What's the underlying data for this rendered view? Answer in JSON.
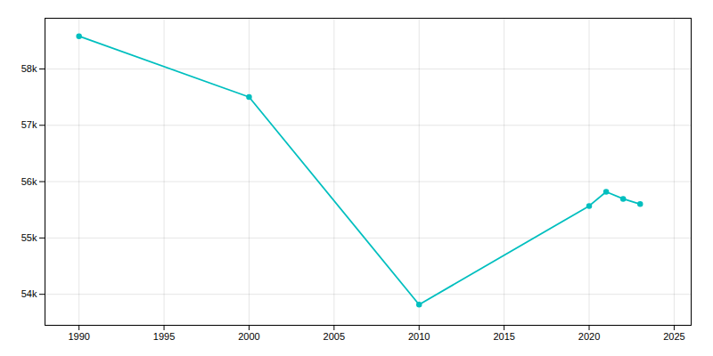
{
  "chart_data": {
    "type": "line",
    "x": [
      1990,
      2000,
      2010,
      2020,
      2021,
      2022,
      2023
    ],
    "values": [
      58582,
      57502,
      53818,
      55568,
      55820,
      55695,
      55601
    ],
    "color": "#00BFBF",
    "marker": "circle",
    "xlim": [
      1988,
      2026
    ],
    "ylim": [
      53450,
      58900
    ],
    "xticks": [
      1990,
      1995,
      2000,
      2005,
      2010,
      2015,
      2020,
      2025
    ],
    "yticks": [
      {
        "value": 54000,
        "label": "54k"
      },
      {
        "value": 55000,
        "label": "55k"
      },
      {
        "value": 56000,
        "label": "56k"
      },
      {
        "value": 57000,
        "label": "57k"
      },
      {
        "value": 58000,
        "label": "58k"
      }
    ],
    "grid": true
  }
}
